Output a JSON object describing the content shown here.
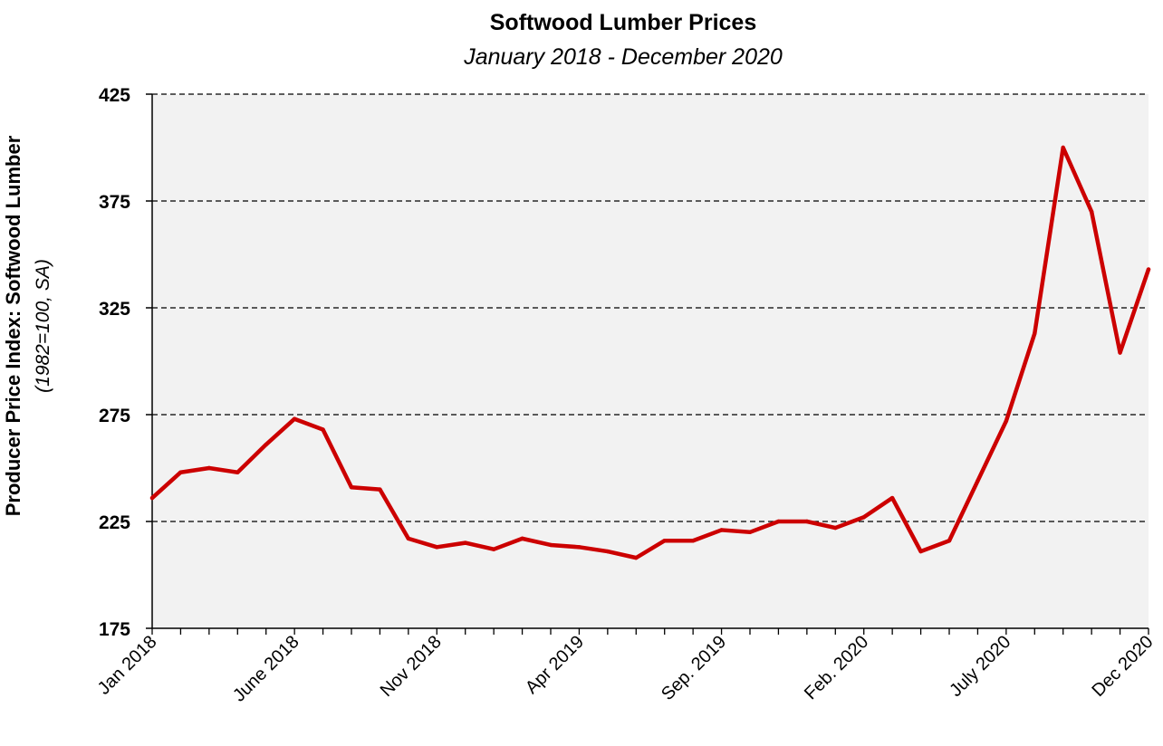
{
  "chart_data": {
    "type": "line",
    "title": "Softwood Lumber Prices",
    "subtitle": "January 2018 - December 2020",
    "ylabel": "Producer Price Index: Softwood Lumber",
    "ylabel_sub": "(1982=100, SA)",
    "ylim": [
      175,
      425
    ],
    "yticks": [
      175,
      225,
      275,
      325,
      375,
      425
    ],
    "ytick_labels": [
      "175",
      "225",
      "275",
      "325",
      "375",
      "425"
    ],
    "grid": "horizontal dashed",
    "colors": {
      "line": "#cc0000",
      "plot_bg": "#f2f2f2",
      "grid": "#000000"
    },
    "x": [
      "Jan 2018",
      "Feb 2018",
      "Mar 2018",
      "Apr 2018",
      "May 2018",
      "June 2018",
      "Jul 2018",
      "Aug 2018",
      "Sep 2018",
      "Oct 2018",
      "Nov 2018",
      "Dec 2018",
      "Jan 2019",
      "Feb 2019",
      "Mar 2019",
      "Apr 2019",
      "May 2019",
      "Jun 2019",
      "Jul 2019",
      "Aug 2019",
      "Sep. 2019",
      "Oct 2019",
      "Nov 2019",
      "Dec 2019",
      "Jan 2020",
      "Feb. 2020",
      "Mar 2020",
      "Apr 2020",
      "May 2020",
      "Jun 2020",
      "July 2020",
      "Aug 2020",
      "Sep 2020",
      "Oct 2020",
      "Nov 2020",
      "Dec 2020"
    ],
    "xtick_labels": [
      {
        "index": 0,
        "label": "Jan 2018"
      },
      {
        "index": 5,
        "label": "June 2018"
      },
      {
        "index": 10,
        "label": "Nov 2018"
      },
      {
        "index": 15,
        "label": "Apr 2019"
      },
      {
        "index": 20,
        "label": "Sep. 2019"
      },
      {
        "index": 25,
        "label": "Feb. 2020"
      },
      {
        "index": 30,
        "label": "July 2020"
      },
      {
        "index": 35,
        "label": "Dec 2020"
      }
    ],
    "series": [
      {
        "values": [
          236,
          248,
          250,
          248,
          261,
          273,
          268,
          241,
          240,
          217,
          213,
          215,
          212,
          217,
          214,
          213,
          211,
          208,
          216,
          216,
          221,
          220,
          225,
          225,
          222,
          227,
          236,
          211,
          216,
          244,
          272,
          313,
          400,
          370,
          304,
          343
        ]
      }
    ]
  }
}
